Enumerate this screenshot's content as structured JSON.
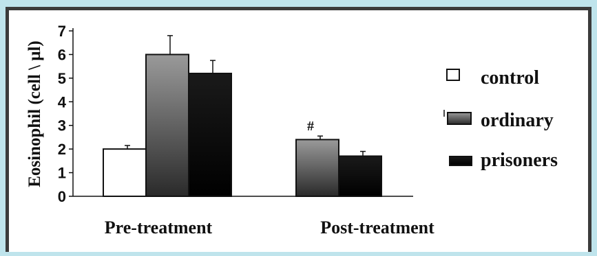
{
  "chart_data": {
    "type": "bar",
    "categories": [
      "Pre-treatment",
      "Post-treatment"
    ],
    "series": [
      {
        "name": "control",
        "values": [
          2.0,
          null
        ],
        "errors": [
          0.15,
          null
        ],
        "color": "#ffffff"
      },
      {
        "name": "ordinary",
        "values": [
          6.0,
          2.4
        ],
        "errors": [
          0.8,
          0.15
        ],
        "color": "#4a4a4a"
      },
      {
        "name": "prisoners",
        "values": [
          5.2,
          1.7
        ],
        "errors": [
          0.55,
          0.2
        ],
        "color": "#050505"
      }
    ],
    "ylabel": "Eosinophil (cell \\ μl)",
    "ylim": [
      0,
      7
    ],
    "yticks": [
      0,
      1,
      2,
      3,
      4,
      5,
      6,
      7
    ],
    "annotations": [
      {
        "text": "#",
        "category": "Post-treatment",
        "series": "ordinary"
      }
    ],
    "legend_position": "right",
    "grid": false
  }
}
